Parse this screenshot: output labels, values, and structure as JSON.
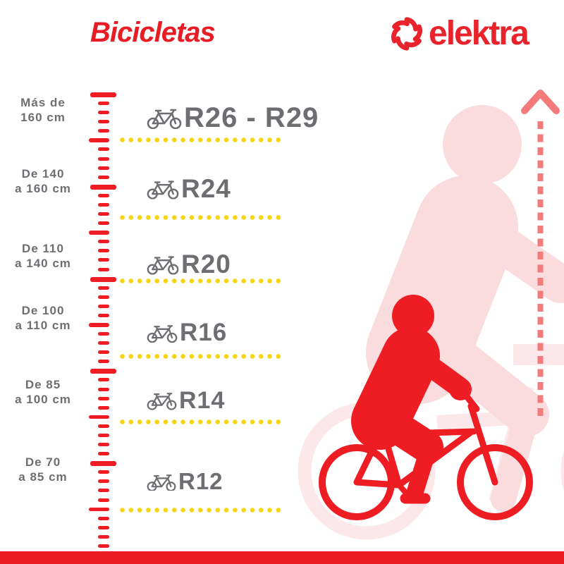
{
  "header": {
    "title": "Bicicletas",
    "brand": "elektra"
  },
  "size_chart": {
    "rows": [
      {
        "height_line1": "Más de",
        "height_line2": "160 cm",
        "size": "R26 - R29"
      },
      {
        "height_line1": "De 140",
        "height_line2": "a 160 cm",
        "size": "R24"
      },
      {
        "height_line1": "De 110",
        "height_line2": "a 140 cm",
        "size": "R20"
      },
      {
        "height_line1": "De 100",
        "height_line2": "a 110 cm",
        "size": "R16"
      },
      {
        "height_line1": "De 85",
        "height_line2": "a 100 cm",
        "size": "R14"
      },
      {
        "height_line1": "De 70",
        "height_line2": "a 85 cm",
        "size": "R12"
      }
    ]
  },
  "colors": {
    "brand_red": "#ee1c23",
    "salmon_arrow": "#f47b7b",
    "light_pink_body": "#fadbde",
    "light_pink_bike": "#fce8ea",
    "gray_text": "#6d6e71",
    "yellow_dots": "#f7d411"
  }
}
